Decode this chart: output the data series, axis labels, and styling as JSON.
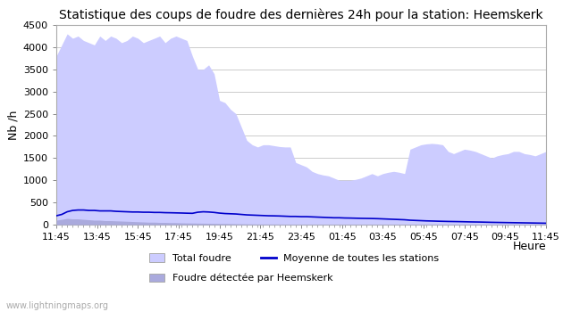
{
  "title": "Statistique des coups de foudre des dernières 24h pour la station: Heemskerk",
  "ylabel": "Nb /h",
  "xlabel": "Heure",
  "watermark": "www.lightningmaps.org",
  "x_labels": [
    "11:45",
    "13:45",
    "15:45",
    "17:45",
    "19:45",
    "21:45",
    "23:45",
    "01:45",
    "03:45",
    "05:45",
    "07:45",
    "09:45",
    "11:45"
  ],
  "ylim": [
    0,
    4500
  ],
  "yticks": [
    0,
    500,
    1000,
    1500,
    2000,
    2500,
    3000,
    3500,
    4000,
    4500
  ],
  "color_total": "#ccccff",
  "color_heemskerk": "#aaaadd",
  "color_moyenne": "#0000cc",
  "total_foudre": [
    3800,
    4050,
    4300,
    4200,
    4250,
    4150,
    4100,
    4050,
    4250,
    4150,
    4250,
    4200,
    4100,
    4150,
    4250,
    4200,
    4100,
    4150,
    4200,
    4250,
    4100,
    4200,
    4250,
    4200,
    4150,
    3800,
    3500,
    3500,
    3600,
    3400,
    2800,
    2750,
    2600,
    2500,
    2200,
    1900,
    1800,
    1750,
    1800,
    1800,
    1780,
    1760,
    1750,
    1750,
    1400,
    1350,
    1300,
    1200,
    1150,
    1120,
    1100,
    1050,
    1000,
    1000,
    1000,
    1020,
    1050,
    1100,
    1150,
    1100,
    1150,
    1180,
    1200,
    1180,
    1150,
    1700,
    1750,
    1800,
    1820,
    1830,
    1820,
    1800,
    1650,
    1600,
    1650,
    1700,
    1680,
    1650,
    1600,
    1550,
    1500,
    1550,
    1580,
    1600,
    1650,
    1650,
    1600,
    1580,
    1550,
    1600,
    1650
  ],
  "heemskerk": [
    100,
    120,
    140,
    130,
    130,
    120,
    110,
    100,
    100,
    90,
    90,
    85,
    80,
    75,
    70,
    65,
    60,
    55,
    55,
    50,
    50,
    45,
    45,
    40,
    38,
    36,
    34,
    32,
    30,
    28,
    26,
    25,
    22,
    20,
    18,
    16,
    14,
    12,
    12,
    12,
    12,
    11,
    10,
    10,
    10,
    9,
    9,
    8,
    8,
    8,
    8,
    8,
    8,
    8,
    8,
    8,
    8,
    8,
    8,
    8,
    8,
    8,
    8,
    8,
    8,
    10,
    10,
    10,
    10,
    10,
    10,
    10,
    10,
    10,
    10,
    10,
    10,
    10,
    10,
    10,
    10,
    10,
    10,
    10,
    10,
    10,
    10,
    10,
    10,
    10,
    10
  ],
  "moyenne": [
    200,
    230,
    290,
    320,
    330,
    330,
    320,
    320,
    310,
    310,
    310,
    300,
    295,
    290,
    285,
    285,
    280,
    280,
    275,
    275,
    270,
    268,
    265,
    262,
    258,
    255,
    280,
    290,
    285,
    275,
    260,
    250,
    245,
    240,
    230,
    220,
    215,
    210,
    205,
    200,
    198,
    195,
    190,
    185,
    185,
    180,
    180,
    175,
    170,
    165,
    160,
    155,
    155,
    150,
    148,
    145,
    142,
    140,
    138,
    135,
    130,
    125,
    120,
    115,
    110,
    100,
    95,
    90,
    85,
    82,
    78,
    75,
    72,
    70,
    68,
    65,
    62,
    60,
    58,
    55,
    52,
    50,
    48,
    46,
    44,
    42,
    40,
    38,
    36,
    34,
    32
  ],
  "n_points": 91,
  "background_color": "#ffffff",
  "plot_bg_color": "#ffffff",
  "grid_color": "#cccccc",
  "title_fontsize": 10,
  "axis_fontsize": 8,
  "legend_fontsize": 8
}
